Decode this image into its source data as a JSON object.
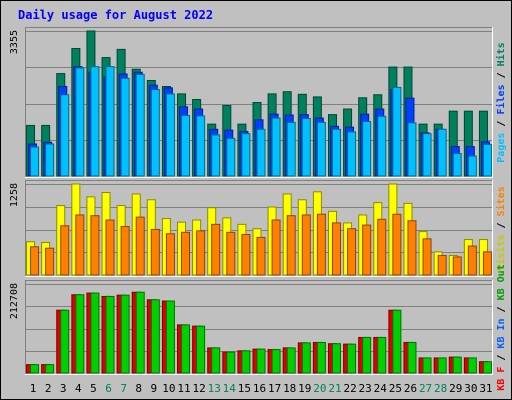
{
  "chart_data": {
    "type": "bar",
    "title": "Daily usage for August 2022",
    "days": [
      "1",
      "2",
      "3",
      "4",
      "5",
      "6",
      "7",
      "8",
      "9",
      "10",
      "11",
      "12",
      "13",
      "14",
      "15",
      "16",
      "17",
      "18",
      "19",
      "20",
      "21",
      "22",
      "23",
      "24",
      "25",
      "26",
      "27",
      "28",
      "29",
      "30",
      "31"
    ],
    "weekend_days": [
      "6",
      "7",
      "13",
      "14",
      "20",
      "21",
      "27",
      "28"
    ],
    "panels": [
      {
        "id": "hits",
        "y_tick": "3355",
        "ymax": 3355,
        "legend": [
          {
            "text": "Pages",
            "color": "#00c0ff"
          },
          {
            "text": " / ",
            "color": "#000000"
          },
          {
            "text": "Files",
            "color": "#0040ff"
          },
          {
            "text": " / ",
            "color": "#000000"
          },
          {
            "text": "Hits",
            "color": "#00805c"
          }
        ],
        "series": [
          {
            "name": "Hits",
            "color": "#00805c",
            "values": [
              1170,
              1170,
              2370,
              2950,
              3355,
              2740,
              2930,
              2470,
              2210,
              2070,
              1900,
              1770,
              1200,
              1630,
              1200,
              1700,
              1900,
              1950,
              1890,
              1830,
              1420,
              1550,
              1810,
              1880,
              2520,
              2520,
              1200,
              1200,
              1500,
              1500,
              1500
            ]
          },
          {
            "name": "Files",
            "color": "#0040ff",
            "values": [
              740,
              780,
              2070,
              2530,
              2400,
              2300,
              2360,
              2400,
              2100,
              2040,
              1600,
              1550,
              1080,
              1060,
              1030,
              1300,
              1430,
              1410,
              1420,
              1340,
              1150,
              1130,
              1430,
              1550,
              2000,
              1800,
              1000,
              1080,
              680,
              680,
              790
            ]
          },
          {
            "name": "Pages",
            "color": "#00c0ff",
            "values": [
              670,
              740,
              1880,
              2500,
              2530,
              2530,
              2260,
              2350,
              2000,
              1900,
              1400,
              1390,
              950,
              870,
              980,
              1080,
              1340,
              1240,
              1330,
              1240,
              1080,
              1020,
              1260,
              1380,
              2050,
              1230,
              980,
              1080,
              520,
              460,
              730
            ]
          }
        ]
      },
      {
        "id": "visits",
        "y_tick": "1258",
        "ymax": 1258,
        "legend": [
          {
            "text": "Visits",
            "color": "#c8c800"
          },
          {
            "text": " / ",
            "color": "#000000"
          },
          {
            "text": "Sites",
            "color": "#ff8000"
          }
        ],
        "series": [
          {
            "name": "Visits",
            "color": "#ffff00",
            "values": [
              460,
              450,
              960,
              1258,
              1080,
              1140,
              960,
              1120,
              1040,
              780,
              730,
              760,
              930,
              790,
              700,
              640,
              940,
              1120,
              1040,
              1150,
              880,
              720,
              830,
              1000,
              1258,
              990,
              600,
              320,
              270,
              490,
              490
            ]
          },
          {
            "name": "Sites",
            "color": "#ff8000",
            "values": [
              390,
              370,
              680,
              830,
              820,
              760,
              670,
              800,
              630,
              570,
              590,
              610,
              700,
              590,
              560,
              520,
              760,
              820,
              830,
              840,
              720,
              640,
              690,
              770,
              840,
              750,
              500,
              270,
              250,
              400,
              320
            ]
          }
        ]
      },
      {
        "id": "kbytes",
        "y_tick": "212708",
        "ymax": 212708,
        "legend": [
          {
            "text": "KB F",
            "color": "#ff0000"
          },
          {
            "text": " / ",
            "color": "#000000"
          },
          {
            "text": "KB In",
            "color": "#0060ff"
          },
          {
            "text": " / ",
            "color": "#000000"
          },
          {
            "text": "KB Out",
            "color": "#00a000"
          }
        ],
        "series": [
          {
            "name": "KB F",
            "color": "#e00000",
            "values": [
              20000,
              20000,
              150000,
              187000,
              191000,
              183000,
              186000,
              193000,
              175000,
              172000,
              115000,
              112000,
              60000,
              50000,
              53000,
              57000,
              56000,
              60000,
              72000,
              73000,
              70000,
              69000,
              85000,
              85000,
              150000,
              73000,
              36000,
              36000,
              38000,
              36000,
              27000
            ]
          },
          {
            "name": "KB Out",
            "color": "#00d000",
            "values": [
              20000,
              20000,
              150000,
              187000,
              191000,
              183000,
              186000,
              193000,
              175000,
              172000,
              115000,
              112000,
              60000,
              50000,
              53000,
              57000,
              56000,
              60000,
              72000,
              73000,
              70000,
              69000,
              85000,
              85000,
              150000,
              73000,
              36000,
              36000,
              38000,
              36000,
              27000
            ]
          }
        ]
      }
    ]
  }
}
